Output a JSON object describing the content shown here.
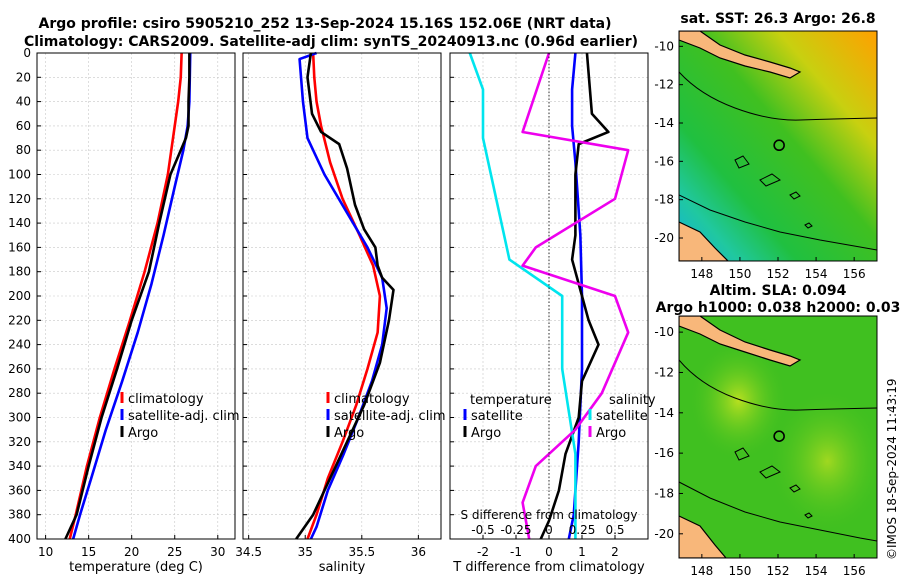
{
  "header": {
    "title_line1": "Argo profile: csiro 5905210_252 13-Sep-2024 15.16S 152.06E (NRT data)",
    "title_line2": "Climatology: CARS2009. Satellite-adj clim: synTS_20240913.nc (0.96d earlier)"
  },
  "colors": {
    "climatology": "#ff0000",
    "satellite": "#0000ff",
    "argo": "#000000",
    "salinity_sat": "#00e5ee",
    "salinity_argo": "#ee00ee",
    "land": "#f8b77a"
  },
  "timestamp": "©IMOS 18-Sep-2024 11:43:19",
  "chart_data": [
    {
      "type": "line",
      "name": "temperature-profile",
      "xlabel": "temperature (deg C)",
      "xlim": [
        9,
        32
      ],
      "ylim": [
        0,
        400
      ],
      "xticks": [
        10,
        15,
        20,
        25,
        30
      ],
      "yticks": [
        0,
        20,
        40,
        60,
        80,
        100,
        120,
        140,
        160,
        180,
        200,
        220,
        240,
        260,
        280,
        300,
        320,
        340,
        360,
        380,
        400
      ],
      "legend": [
        "climatology",
        "satellite-adj. clim",
        "Argo"
      ],
      "series": [
        {
          "name": "climatology",
          "color": "#ff0000",
          "points": [
            [
              25.8,
              0
            ],
            [
              25.7,
              20
            ],
            [
              25.4,
              40
            ],
            [
              25.0,
              60
            ],
            [
              24.2,
              100
            ],
            [
              23.0,
              140
            ],
            [
              21.5,
              180
            ],
            [
              19.8,
              220
            ],
            [
              18.0,
              260
            ],
            [
              16.3,
              300
            ],
            [
              14.8,
              340
            ],
            [
              13.5,
              380
            ],
            [
              12.8,
              400
            ]
          ]
        },
        {
          "name": "satellite-adj. clim",
          "color": "#0000ff",
          "points": [
            [
              26.8,
              0
            ],
            [
              26.7,
              40
            ],
            [
              26.5,
              60
            ],
            [
              26.0,
              80
            ],
            [
              25.0,
              110
            ],
            [
              23.7,
              150
            ],
            [
              22.3,
              190
            ],
            [
              20.7,
              230
            ],
            [
              18.9,
              270
            ],
            [
              17.0,
              310
            ],
            [
              15.3,
              350
            ],
            [
              14.0,
              380
            ],
            [
              13.2,
              400
            ]
          ]
        },
        {
          "name": "Argo",
          "color": "#000000",
          "points": [
            [
              26.7,
              0
            ],
            [
              26.7,
              20
            ],
            [
              26.6,
              40
            ],
            [
              26.6,
              60
            ],
            [
              26.3,
              70
            ],
            [
              25.7,
              80
            ],
            [
              24.5,
              100
            ],
            [
              23.2,
              140
            ],
            [
              22.0,
              180
            ],
            [
              20.0,
              220
            ],
            [
              18.3,
              260
            ],
            [
              16.5,
              300
            ],
            [
              15.0,
              340
            ],
            [
              13.6,
              380
            ],
            [
              12.3,
              400
            ]
          ]
        }
      ]
    },
    {
      "type": "line",
      "name": "salinity-profile",
      "xlabel": "salinity",
      "xlim": [
        34.45,
        36.2
      ],
      "ylim": [
        0,
        400
      ],
      "xticks": [
        34.5,
        35,
        35.5,
        36
      ],
      "xticklabels": [
        "34.5",
        "35",
        "35.5",
        "36"
      ],
      "legend": [
        "climatology",
        "satellite-adj. clim",
        "Argo"
      ],
      "series": [
        {
          "name": "climatology",
          "color": "#ff0000",
          "points": [
            [
              35.07,
              0
            ],
            [
              35.08,
              20
            ],
            [
              35.1,
              40
            ],
            [
              35.14,
              60
            ],
            [
              35.22,
              90
            ],
            [
              35.33,
              120
            ],
            [
              35.48,
              150
            ],
            [
              35.6,
              175
            ],
            [
              35.66,
              200
            ],
            [
              35.64,
              230
            ],
            [
              35.55,
              260
            ],
            [
              35.45,
              290
            ],
            [
              35.33,
              320
            ],
            [
              35.2,
              350
            ],
            [
              35.1,
              380
            ],
            [
              35.02,
              400
            ]
          ]
        },
        {
          "name": "satellite-adj. clim",
          "color": "#0000ff",
          "points": [
            [
              35.1,
              0
            ],
            [
              34.95,
              5
            ],
            [
              34.98,
              40
            ],
            [
              35.02,
              70
            ],
            [
              35.17,
              100
            ],
            [
              35.36,
              130
            ],
            [
              35.55,
              160
            ],
            [
              35.68,
              185
            ],
            [
              35.72,
              210
            ],
            [
              35.68,
              240
            ],
            [
              35.59,
              270
            ],
            [
              35.47,
              300
            ],
            [
              35.34,
              330
            ],
            [
              35.2,
              360
            ],
            [
              35.1,
              390
            ],
            [
              35.05,
              400
            ]
          ]
        },
        {
          "name": "Argo",
          "color": "#000000",
          "points": [
            [
              35.05,
              0
            ],
            [
              35.02,
              20
            ],
            [
              35.06,
              50
            ],
            [
              35.14,
              65
            ],
            [
              35.3,
              75
            ],
            [
              35.37,
              95
            ],
            [
              35.44,
              125
            ],
            [
              35.52,
              145
            ],
            [
              35.62,
              160
            ],
            [
              35.64,
              175
            ],
            [
              35.68,
              185
            ],
            [
              35.78,
              195
            ],
            [
              35.74,
              220
            ],
            [
              35.66,
              255
            ],
            [
              35.52,
              290
            ],
            [
              35.37,
              320
            ],
            [
              35.17,
              360
            ],
            [
              35.07,
              380
            ],
            [
              34.92,
              400
            ]
          ]
        }
      ]
    },
    {
      "type": "line",
      "name": "difference-profile",
      "xlabel": "T difference from climatology",
      "xlabel_top": "S difference from climatology",
      "xlim": [
        -3,
        3
      ],
      "ylim": [
        0,
        400
      ],
      "xticks": [
        -2,
        -1,
        0,
        1,
        2
      ],
      "xticklabels": [
        "-2",
        "-1",
        "0",
        "1",
        "2"
      ],
      "sticks": [
        -0.5,
        -0.25,
        0,
        0.25,
        0.5
      ],
      "stickslabels": [
        "-0.5",
        "-0.25",
        "0",
        "0.25",
        "0.5"
      ],
      "s_scale": 4,
      "legend_temperature_title": "temperature",
      "legend_salinity_title": "salinity",
      "legend_temperature": [
        "satellite",
        "Argo"
      ],
      "legend_salinity": [
        "satellite",
        "Argo"
      ],
      "series": [
        {
          "name": "T satellite",
          "color": "#0000ff",
          "points": [
            [
              0.8,
              0
            ],
            [
              0.7,
              30
            ],
            [
              0.7,
              60
            ],
            [
              0.8,
              90
            ],
            [
              0.95,
              150
            ],
            [
              1.0,
              200
            ],
            [
              1.0,
              260
            ],
            [
              0.9,
              320
            ],
            [
              0.75,
              380
            ],
            [
              0.6,
              400
            ]
          ]
        },
        {
          "name": "T Argo",
          "color": "#000000",
          "points": [
            [
              1.15,
              0
            ],
            [
              1.3,
              50
            ],
            [
              1.8,
              65
            ],
            [
              0.9,
              75
            ],
            [
              0.8,
              100
            ],
            [
              0.8,
              150
            ],
            [
              0.7,
              170
            ],
            [
              1.0,
              200
            ],
            [
              1.2,
              220
            ],
            [
              1.5,
              240
            ],
            [
              1.0,
              270
            ],
            [
              0.9,
              300
            ],
            [
              0.5,
              330
            ],
            [
              0.3,
              360
            ],
            [
              0.0,
              385
            ],
            [
              -0.25,
              400
            ]
          ]
        },
        {
          "name": "S satellite",
          "color": "#00e5ee",
          "points": [
            [
              -0.6,
              0
            ],
            [
              -0.5,
              30
            ],
            [
              -0.5,
              70
            ],
            [
              -0.4,
              120
            ],
            [
              -0.3,
              170
            ],
            [
              0.1,
              200
            ],
            [
              0.1,
              260
            ],
            [
              0.2,
              330
            ],
            [
              0.2,
              400
            ]
          ]
        },
        {
          "name": "S Argo",
          "color": "#ee00ee",
          "points": [
            [
              0.0,
              0
            ],
            [
              -0.2,
              65
            ],
            [
              0.6,
              80
            ],
            [
              0.5,
              120
            ],
            [
              -0.1,
              160
            ],
            [
              -0.2,
              175
            ],
            [
              0.5,
              200
            ],
            [
              0.6,
              230
            ],
            [
              0.4,
              280
            ],
            [
              0.2,
              310
            ],
            [
              -0.1,
              340
            ],
            [
              -0.2,
              370
            ],
            [
              -0.15,
              400
            ]
          ]
        }
      ]
    },
    {
      "type": "heatmap",
      "name": "sst-map",
      "title": "sat. SST: 26.3 Argo: 26.8",
      "xlim": [
        146.8,
        157.2
      ],
      "ylim": [
        -21.2,
        -9.2
      ],
      "xticks": [
        148,
        150,
        152,
        154,
        156
      ],
      "xticklabels": [
        "148",
        "150",
        "152",
        "154",
        "156"
      ],
      "yticks": [
        -10,
        -12,
        -14,
        -16,
        -18,
        -20
      ],
      "yticklabels": [
        "-10",
        "-12",
        "-14",
        "-16",
        "-18",
        "-20"
      ],
      "float_position": [
        152.06,
        -15.16
      ]
    },
    {
      "type": "heatmap",
      "name": "sla-map",
      "title": "Altim. SLA: 0.094",
      "subtitle": "Argo h1000: 0.038 h2000: 0.03",
      "xlim": [
        146.8,
        157.2
      ],
      "ylim": [
        -21.2,
        -9.2
      ],
      "xticks": [
        148,
        150,
        152,
        154,
        156
      ],
      "xticklabels": [
        "148",
        "150",
        "152",
        "154",
        "156"
      ],
      "yticks": [
        -10,
        -12,
        -14,
        -16,
        -18,
        -20
      ],
      "yticklabels": [
        "-10",
        "-12",
        "-14",
        "-16",
        "-18",
        "-20"
      ],
      "float_position": [
        152.06,
        -15.16
      ]
    }
  ]
}
